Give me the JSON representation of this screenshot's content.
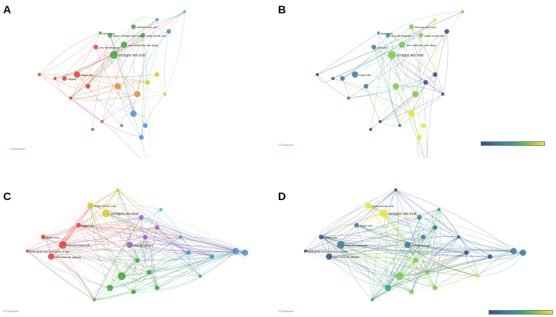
{
  "panels": [
    {
      "letter": "A",
      "logo": "VOSviewer",
      "has_colorbar": false,
      "labels": [
        "scripps res inst",
        "univ california san diego",
        "harvard med sch",
        "wake forest univ",
        "tokyo medical dent univ",
        "univ birmingham",
        "duke univ",
        "mayo clin",
        "calgary"
      ]
    },
    {
      "letter": "B",
      "logo": "VOSviewer",
      "has_colorbar": true,
      "labels": [
        "scripps res inst",
        "univ california san diego",
        "harvard med sch",
        "wake forest univ",
        "univ birmingham",
        "boston u",
        "duke univ",
        "mayo clin"
      ]
    },
    {
      "letter": "C",
      "logo": "VOSviewer",
      "has_colorbar": false,
      "labels": [
        "scripps res inst",
        "wake forest univ",
        "mayo clin",
        "harvard med sch",
        "univ med ctr utrecht",
        "duke univ",
        "post grad inst med educ & res",
        "univ groningen"
      ]
    },
    {
      "letter": "D",
      "logo": "VOSviewer",
      "has_colorbar": true,
      "labels": [
        "scripps res inst",
        "wake forest univ",
        "mayo clin",
        "harvard med sch",
        "univ med ctr utrecht",
        "duke univ",
        "post grad inst med educ & res",
        "univ groningen"
      ]
    }
  ],
  "colors": {
    "cluster": [
      "#e04040",
      "#3aaa3a",
      "#4a8fd8",
      "#d8c830",
      "#9a60c8",
      "#40c0c8",
      "#e88a30",
      "#c86a90"
    ],
    "overlay": [
      "#3b4b8c",
      "#3a7aa0",
      "#2fa58a",
      "#7cc84c",
      "#f0e22c"
    ]
  }
}
